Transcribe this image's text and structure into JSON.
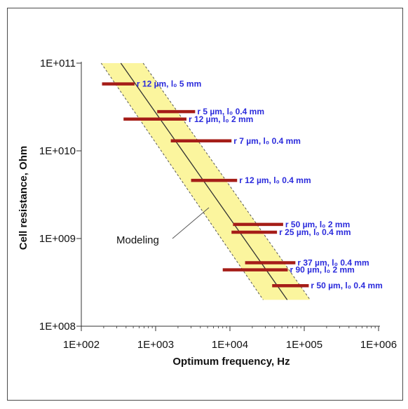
{
  "chart_data": {
    "type": "scatter",
    "title": "",
    "xlabel": "Optimum frequency, Hz",
    "ylabel": "Cell resistance, Ohm",
    "x_scale": "log",
    "y_scale": "log",
    "xlim": [
      100,
      1000000
    ],
    "ylim": [
      100000000,
      100000000000
    ],
    "x_tick_labels": [
      "1E+002",
      "1E+003",
      "1E+004",
      "1E+005",
      "1E+006"
    ],
    "y_tick_labels": [
      "1E+008",
      "1E+009",
      "1E+010",
      "1E+011"
    ],
    "grid": false,
    "band": {
      "label": "Modeling",
      "color": "#fbf59e",
      "center_line": [
        [
          340,
          100000000000
        ],
        [
          59000,
          200000000
        ]
      ],
      "left_edge": [
        [
          185,
          100000000000
        ],
        [
          28000,
          200000000
        ]
      ],
      "right_edge": [
        [
          680,
          100000000000
        ],
        [
          120000,
          200000000
        ]
      ]
    },
    "segments": [
      {
        "label": "r 12 µm, l₀ 5 mm",
        "x_range": [
          190,
          520
        ],
        "y": 58000000000
      },
      {
        "label": "r 5 µm, l₀ 0.4 mm",
        "x_range": [
          1050,
          3400
        ],
        "y": 28000000000
      },
      {
        "label": "r 12 µm, l₀ 2 mm",
        "x_range": [
          370,
          2600
        ],
        "y": 23000000000
      },
      {
        "label": "r 7 µm, l₀ 0.4 mm",
        "x_range": [
          1600,
          10500
        ],
        "y": 13000000000
      },
      {
        "label": "r 12 µm, l₀ 0.4 mm",
        "x_range": [
          3000,
          12500
        ],
        "y": 4600000000
      },
      {
        "label": "r 50 µm, l₀ 2 mm",
        "x_range": [
          11000,
          52000
        ],
        "y": 1450000000
      },
      {
        "label": "r 25 µm, l₀ 0.4 mm",
        "x_range": [
          10500,
          43000
        ],
        "y": 1180000000
      },
      {
        "label": "r 37 µm, l₀ 0.4 mm",
        "x_range": [
          16000,
          76000
        ],
        "y": 530000000
      },
      {
        "label": "r 90 µm, l₀ 2 mm",
        "x_range": [
          8000,
          60000
        ],
        "y": 440000000
      },
      {
        "label": "r 50 µm, l₀ 0.4 mm",
        "x_range": [
          37000,
          115000
        ],
        "y": 290000000
      }
    ],
    "segment_color": "#a51d18"
  }
}
